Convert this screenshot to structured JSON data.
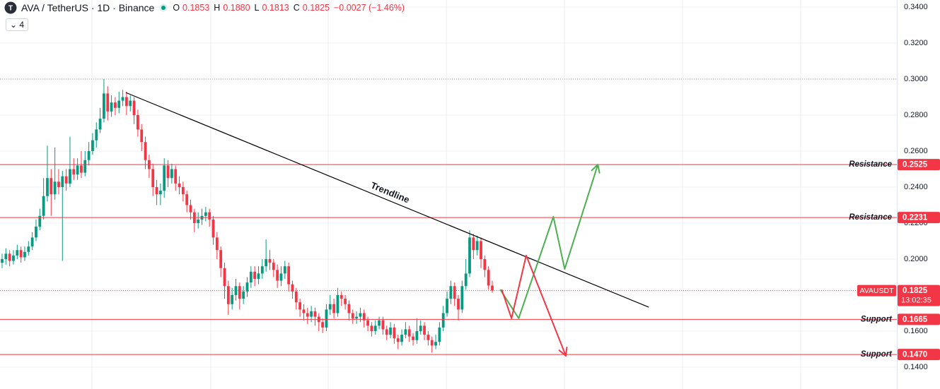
{
  "header": {
    "symbol": "AVA / TetherUS · 1D · Binance",
    "ohlc": [
      {
        "k": "O",
        "v": "0.1853"
      },
      {
        "k": "H",
        "v": "0.1880"
      },
      {
        "k": "L",
        "v": "0.1813"
      },
      {
        "k": "C",
        "v": "0.1825"
      }
    ],
    "change": "−0.0027 (−1.46%)",
    "indicator_count": "4"
  },
  "chart_data": {
    "type": "candlestick",
    "up_color": "#089981",
    "down_color": "#f23645",
    "xlim": [
      -0.56,
      237.3
    ],
    "ylim": [
      0.14,
      0.34
    ],
    "yticks": [
      {
        "value": 0.34,
        "label": "0.3400"
      },
      {
        "value": 0.32,
        "label": "0.3200"
      },
      {
        "value": 0.3,
        "label": "0.3000"
      },
      {
        "value": 0.28,
        "label": "0.2800"
      },
      {
        "value": 0.26,
        "label": "0.2600"
      },
      {
        "value": 0.24,
        "label": "0.2400"
      },
      {
        "value": 0.22,
        "label": "0.2200"
      },
      {
        "value": 0.2,
        "label": "0.2000"
      },
      {
        "value": 0.18,
        "label": "0.1800"
      },
      {
        "value": 0.16,
        "label": "0.1600"
      },
      {
        "value": 0.14,
        "label": "0.1400"
      }
    ],
    "grid": true,
    "high_line": true,
    "candles": [
      [
        0.198,
        0.203,
        0.195,
        0.2
      ],
      [
        0.2,
        0.206,
        0.197,
        0.203
      ],
      [
        0.203,
        0.205,
        0.196,
        0.199
      ],
      [
        0.199,
        0.205,
        0.197,
        0.202
      ],
      [
        0.202,
        0.208,
        0.2,
        0.205
      ],
      [
        0.205,
        0.207,
        0.198,
        0.201
      ],
      [
        0.201,
        0.207,
        0.199,
        0.204
      ],
      [
        0.204,
        0.21,
        0.202,
        0.207
      ],
      [
        0.207,
        0.215,
        0.205,
        0.212
      ],
      [
        0.212,
        0.222,
        0.21,
        0.218
      ],
      [
        0.218,
        0.228,
        0.216,
        0.224
      ],
      [
        0.224,
        0.245,
        0.222,
        0.235
      ],
      [
        0.235,
        0.263,
        0.232,
        0.245
      ],
      [
        0.245,
        0.25,
        0.224,
        0.236
      ],
      [
        0.236,
        0.262,
        0.233,
        0.243
      ],
      [
        0.243,
        0.25,
        0.236,
        0.24
      ],
      [
        0.24,
        0.249,
        0.199,
        0.246
      ],
      [
        0.246,
        0.25,
        0.238,
        0.242
      ],
      [
        0.242,
        0.268,
        0.24,
        0.25
      ],
      [
        0.25,
        0.256,
        0.244,
        0.247
      ],
      [
        0.247,
        0.256,
        0.244,
        0.252
      ],
      [
        0.252,
        0.26,
        0.245,
        0.248
      ],
      [
        0.248,
        0.26,
        0.246,
        0.255
      ],
      [
        0.255,
        0.265,
        0.252,
        0.26
      ],
      [
        0.26,
        0.27,
        0.258,
        0.266
      ],
      [
        0.266,
        0.276,
        0.262,
        0.272
      ],
      [
        0.272,
        0.284,
        0.27,
        0.278
      ],
      [
        0.278,
        0.3,
        0.276,
        0.292
      ],
      [
        0.292,
        0.296,
        0.277,
        0.282
      ],
      [
        0.282,
        0.291,
        0.279,
        0.287
      ],
      [
        0.287,
        0.29,
        0.28,
        0.284
      ],
      [
        0.284,
        0.293,
        0.281,
        0.288
      ],
      [
        0.288,
        0.294,
        0.285,
        0.29
      ],
      [
        0.29,
        0.293,
        0.28,
        0.285
      ],
      [
        0.285,
        0.291,
        0.282,
        0.288
      ],
      [
        0.288,
        0.29,
        0.275,
        0.28
      ],
      [
        0.28,
        0.283,
        0.268,
        0.272
      ],
      [
        0.272,
        0.275,
        0.26,
        0.265
      ],
      [
        0.265,
        0.268,
        0.25,
        0.255
      ],
      [
        0.255,
        0.258,
        0.245,
        0.25
      ],
      [
        0.25,
        0.253,
        0.235,
        0.24
      ],
      [
        0.24,
        0.244,
        0.23,
        0.236
      ],
      [
        0.236,
        0.242,
        0.23,
        0.238
      ],
      [
        0.238,
        0.256,
        0.234,
        0.252
      ],
      [
        0.252,
        0.255,
        0.24,
        0.245
      ],
      [
        0.245,
        0.253,
        0.242,
        0.25
      ],
      [
        0.25,
        0.252,
        0.238,
        0.242
      ],
      [
        0.242,
        0.246,
        0.236,
        0.24
      ],
      [
        0.24,
        0.243,
        0.232,
        0.236
      ],
      [
        0.236,
        0.238,
        0.226,
        0.23
      ],
      [
        0.23,
        0.233,
        0.222,
        0.226
      ],
      [
        0.226,
        0.228,
        0.215,
        0.22
      ],
      [
        0.22,
        0.226,
        0.217,
        0.222
      ],
      [
        0.222,
        0.228,
        0.219,
        0.224
      ],
      [
        0.224,
        0.229,
        0.221,
        0.226
      ],
      [
        0.226,
        0.228,
        0.218,
        0.222
      ],
      [
        0.222,
        0.224,
        0.208,
        0.212
      ],
      [
        0.212,
        0.215,
        0.2,
        0.205
      ],
      [
        0.205,
        0.207,
        0.19,
        0.195
      ],
      [
        0.195,
        0.198,
        0.178,
        0.185
      ],
      [
        0.185,
        0.188,
        0.169,
        0.175
      ],
      [
        0.175,
        0.184,
        0.172,
        0.18
      ],
      [
        0.18,
        0.189,
        0.177,
        0.185
      ],
      [
        0.185,
        0.187,
        0.172,
        0.178
      ],
      [
        0.178,
        0.185,
        0.175,
        0.182
      ],
      [
        0.182,
        0.19,
        0.179,
        0.187
      ],
      [
        0.187,
        0.196,
        0.184,
        0.193
      ],
      [
        0.193,
        0.196,
        0.185,
        0.189
      ],
      [
        0.189,
        0.196,
        0.186,
        0.192
      ],
      [
        0.192,
        0.2,
        0.189,
        0.196
      ],
      [
        0.196,
        0.211,
        0.193,
        0.2
      ],
      [
        0.2,
        0.205,
        0.194,
        0.198
      ],
      [
        0.198,
        0.2,
        0.19,
        0.194
      ],
      [
        0.194,
        0.197,
        0.184,
        0.188
      ],
      [
        0.188,
        0.196,
        0.185,
        0.192
      ],
      [
        0.192,
        0.199,
        0.189,
        0.196
      ],
      [
        0.196,
        0.198,
        0.182,
        0.186
      ],
      [
        0.186,
        0.188,
        0.178,
        0.182
      ],
      [
        0.182,
        0.184,
        0.172,
        0.176
      ],
      [
        0.176,
        0.178,
        0.168,
        0.172
      ],
      [
        0.172,
        0.175,
        0.166,
        0.17
      ],
      [
        0.17,
        0.173,
        0.164,
        0.168
      ],
      [
        0.168,
        0.174,
        0.165,
        0.171
      ],
      [
        0.171,
        0.173,
        0.163,
        0.168
      ],
      [
        0.168,
        0.17,
        0.16,
        0.165
      ],
      [
        0.165,
        0.167,
        0.159,
        0.162
      ],
      [
        0.162,
        0.175,
        0.16,
        0.172
      ],
      [
        0.172,
        0.18,
        0.169,
        0.175
      ],
      [
        0.175,
        0.178,
        0.167,
        0.17
      ],
      [
        0.17,
        0.184,
        0.168,
        0.18
      ],
      [
        0.18,
        0.182,
        0.174,
        0.178
      ],
      [
        0.178,
        0.18,
        0.172,
        0.175
      ],
      [
        0.175,
        0.177,
        0.166,
        0.17
      ],
      [
        0.17,
        0.172,
        0.164,
        0.167
      ],
      [
        0.167,
        0.171,
        0.164,
        0.168
      ],
      [
        0.168,
        0.173,
        0.165,
        0.17
      ],
      [
        0.17,
        0.172,
        0.162,
        0.166
      ],
      [
        0.166,
        0.168,
        0.16,
        0.163
      ],
      [
        0.163,
        0.165,
        0.157,
        0.16
      ],
      [
        0.16,
        0.166,
        0.158,
        0.163
      ],
      [
        0.163,
        0.168,
        0.161,
        0.166
      ],
      [
        0.166,
        0.168,
        0.158,
        0.161
      ],
      [
        0.161,
        0.163,
        0.155,
        0.158
      ],
      [
        0.158,
        0.165,
        0.156,
        0.162
      ],
      [
        0.162,
        0.164,
        0.153,
        0.156
      ],
      [
        0.156,
        0.158,
        0.15,
        0.154
      ],
      [
        0.154,
        0.161,
        0.152,
        0.158
      ],
      [
        0.158,
        0.165,
        0.156,
        0.161
      ],
      [
        0.161,
        0.163,
        0.154,
        0.157
      ],
      [
        0.157,
        0.159,
        0.152,
        0.155
      ],
      [
        0.155,
        0.167,
        0.153,
        0.16
      ],
      [
        0.16,
        0.166,
        0.158,
        0.163
      ],
      [
        0.163,
        0.165,
        0.155,
        0.158
      ],
      [
        0.158,
        0.16,
        0.152,
        0.155
      ],
      [
        0.155,
        0.157,
        0.148,
        0.152
      ],
      [
        0.152,
        0.158,
        0.15,
        0.154
      ],
      [
        0.154,
        0.165,
        0.152,
        0.162
      ],
      [
        0.162,
        0.174,
        0.16,
        0.17
      ],
      [
        0.17,
        0.182,
        0.168,
        0.178
      ],
      [
        0.178,
        0.188,
        0.175,
        0.185
      ],
      [
        0.185,
        0.187,
        0.174,
        0.178
      ],
      [
        0.178,
        0.18,
        0.166,
        0.172
      ],
      [
        0.172,
        0.188,
        0.17,
        0.185
      ],
      [
        0.185,
        0.2,
        0.183,
        0.192
      ],
      [
        0.192,
        0.216,
        0.19,
        0.212
      ],
      [
        0.212,
        0.214,
        0.2,
        0.205
      ],
      [
        0.205,
        0.213,
        0.202,
        0.21
      ],
      [
        0.21,
        0.212,
        0.195,
        0.2
      ],
      [
        0.2,
        0.202,
        0.19,
        0.194
      ],
      [
        0.194,
        0.196,
        0.183,
        0.1853
      ],
      [
        0.1853,
        0.188,
        0.1813,
        0.1825
      ]
    ],
    "levels": [
      {
        "label": "Resistance",
        "value": 0.2525,
        "value_label": "0.2525"
      },
      {
        "label": "Resistance",
        "value": 0.2231,
        "value_label": "0.2231"
      },
      {
        "label": "Support",
        "value": 0.1665,
        "value_label": "0.1665"
      },
      {
        "label": "Support",
        "value": 0.147,
        "value_label": "0.1470"
      }
    ],
    "level_color": "#f23645",
    "last": {
      "symbol": "AVAUSDT",
      "price": 0.1825,
      "countdown": "13:02:35"
    },
    "trendline": {
      "label": "Trendline",
      "color": "#000000",
      "x": [
        32.8,
        171.5
      ],
      "y": [
        0.2925,
        0.1733
      ]
    },
    "projections": [
      {
        "color": "#4caf50",
        "x": [
          132.1,
          137.0,
          146.2,
          149.2,
          158.0
        ],
        "y": [
          0.1831,
          0.1671,
          0.2235,
          0.1945,
          0.2525
        ]
      },
      {
        "color": "#f23645",
        "x": [
          132.5,
          135.1,
          139.0,
          149.5
        ],
        "y": [
          0.1831,
          0.1671,
          0.202,
          0.1463
        ]
      }
    ]
  }
}
